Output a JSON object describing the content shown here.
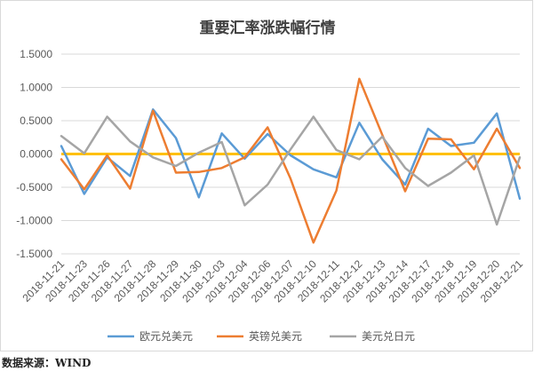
{
  "chart_data": {
    "type": "line",
    "title": "重要汇率涨跌幅行情",
    "xlabel": "",
    "ylabel": "",
    "ylim": [
      -1.5,
      1.5
    ],
    "yticks": [
      "1.5000",
      "1.0000",
      "0.5000",
      "0.0000",
      "-0.5000",
      "-1.0000",
      "-1.5000"
    ],
    "ytick_values": [
      1.5,
      1.0,
      0.5,
      0.0,
      -0.5,
      -1.0,
      -1.5
    ],
    "grid": true,
    "legend_position": "bottom",
    "categories": [
      "2018-11-21",
      "2018-11-23",
      "2018-11-26",
      "2018-11-27",
      "2018-11-28",
      "2018-11-29",
      "2018-11-30",
      "2018-12-03",
      "2018-12-04",
      "2018-12-06",
      "2018-12-07",
      "2018-12-10",
      "2018-12-11",
      "2018-12-12",
      "2018-12-13",
      "2018-12-14",
      "2018-12-17",
      "2018-12-18",
      "2018-12-19",
      "2018-12-20",
      "2018-12-21"
    ],
    "x_values_per_category": 2,
    "series": [
      {
        "name": "欧元兑美元",
        "color": "#5b9bd5",
        "values": [
          0.12,
          -0.6,
          -0.05,
          -0.33,
          0.67,
          0.24,
          -0.65,
          0.31,
          -0.07,
          0.3,
          -0.02,
          -0.23,
          -0.35,
          0.47,
          -0.08,
          -0.46,
          0.38,
          0.12,
          0.17,
          0.61,
          -0.67
        ]
      },
      {
        "name": "英镑兑美元",
        "color": "#ed7d31",
        "values": [
          -0.08,
          -0.53,
          -0.02,
          -0.52,
          0.65,
          -0.28,
          -0.27,
          -0.21,
          -0.05,
          0.4,
          -0.37,
          -1.33,
          -0.55,
          1.13,
          0.29,
          -0.56,
          0.23,
          0.22,
          -0.23,
          0.38,
          -0.21
        ]
      },
      {
        "name": "美元兑日元",
        "color": "#a5a5a5",
        "values": [
          0.27,
          0.01,
          0.56,
          0.19,
          -0.05,
          -0.18,
          0.02,
          0.18,
          -0.77,
          -0.46,
          0.07,
          0.56,
          0.06,
          -0.08,
          0.26,
          -0.21,
          -0.48,
          -0.28,
          -0.02,
          -1.06,
          -0.05
        ]
      }
    ],
    "reference_line": {
      "y": 0,
      "color": "#ffc000"
    }
  },
  "source_note": "数据来源：WIND"
}
